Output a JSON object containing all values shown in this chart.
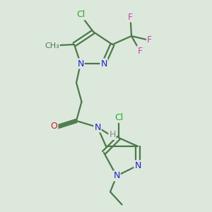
{
  "background_color": "#dde8dd",
  "bond_color": "#4a7a4a",
  "bond_width": 1.6,
  "N_color": "#2222cc",
  "O_color": "#cc2222",
  "F_color": "#cc44aa",
  "Cl_color": "#22aa22",
  "H_color": "#888888",
  "figsize": [
    3.0,
    3.0
  ],
  "dpi": 100,
  "xlim": [
    0,
    10
  ],
  "ylim": [
    0,
    10
  ]
}
